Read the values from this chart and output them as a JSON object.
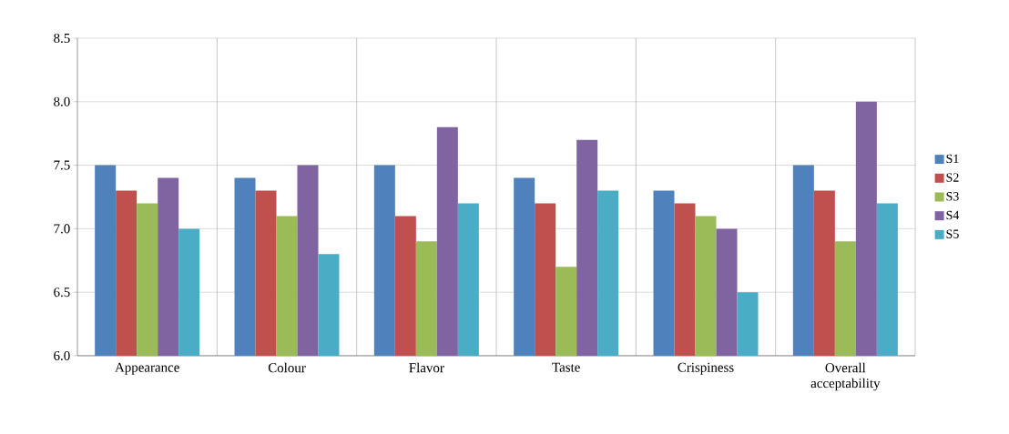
{
  "chart_data": {
    "type": "bar",
    "categories": [
      "Appearance",
      "Colour",
      "Flavor",
      "Taste",
      "Crispiness",
      "Overall acceptability"
    ],
    "series": [
      {
        "name": "S1",
        "color": "#4f81bd",
        "values": [
          7.5,
          7.4,
          7.5,
          7.4,
          7.3,
          7.5
        ]
      },
      {
        "name": "S2",
        "color": "#c0504d",
        "values": [
          7.3,
          7.3,
          7.1,
          7.2,
          7.2,
          7.3
        ]
      },
      {
        "name": "S3",
        "color": "#9bbb59",
        "values": [
          7.2,
          7.1,
          6.9,
          6.7,
          7.1,
          6.9
        ]
      },
      {
        "name": "S4",
        "color": "#8064a2",
        "values": [
          7.4,
          7.5,
          7.8,
          7.7,
          7.0,
          8.0
        ]
      },
      {
        "name": "S5",
        "color": "#4bacc6",
        "values": [
          7.0,
          6.8,
          7.2,
          7.3,
          6.5,
          7.2
        ]
      }
    ],
    "ylim": [
      6.0,
      8.5
    ],
    "yticks": [
      {
        "value": 6.0,
        "label": "6.0"
      },
      {
        "value": 6.5,
        "label": "6.5"
      },
      {
        "value": 7.0,
        "label": "7.0"
      },
      {
        "value": 7.5,
        "label": "7.5"
      },
      {
        "value": 8.0,
        "label": "8.0"
      },
      {
        "value": 8.5,
        "label": "8.5"
      }
    ],
    "grid": true,
    "legend": "right"
  }
}
